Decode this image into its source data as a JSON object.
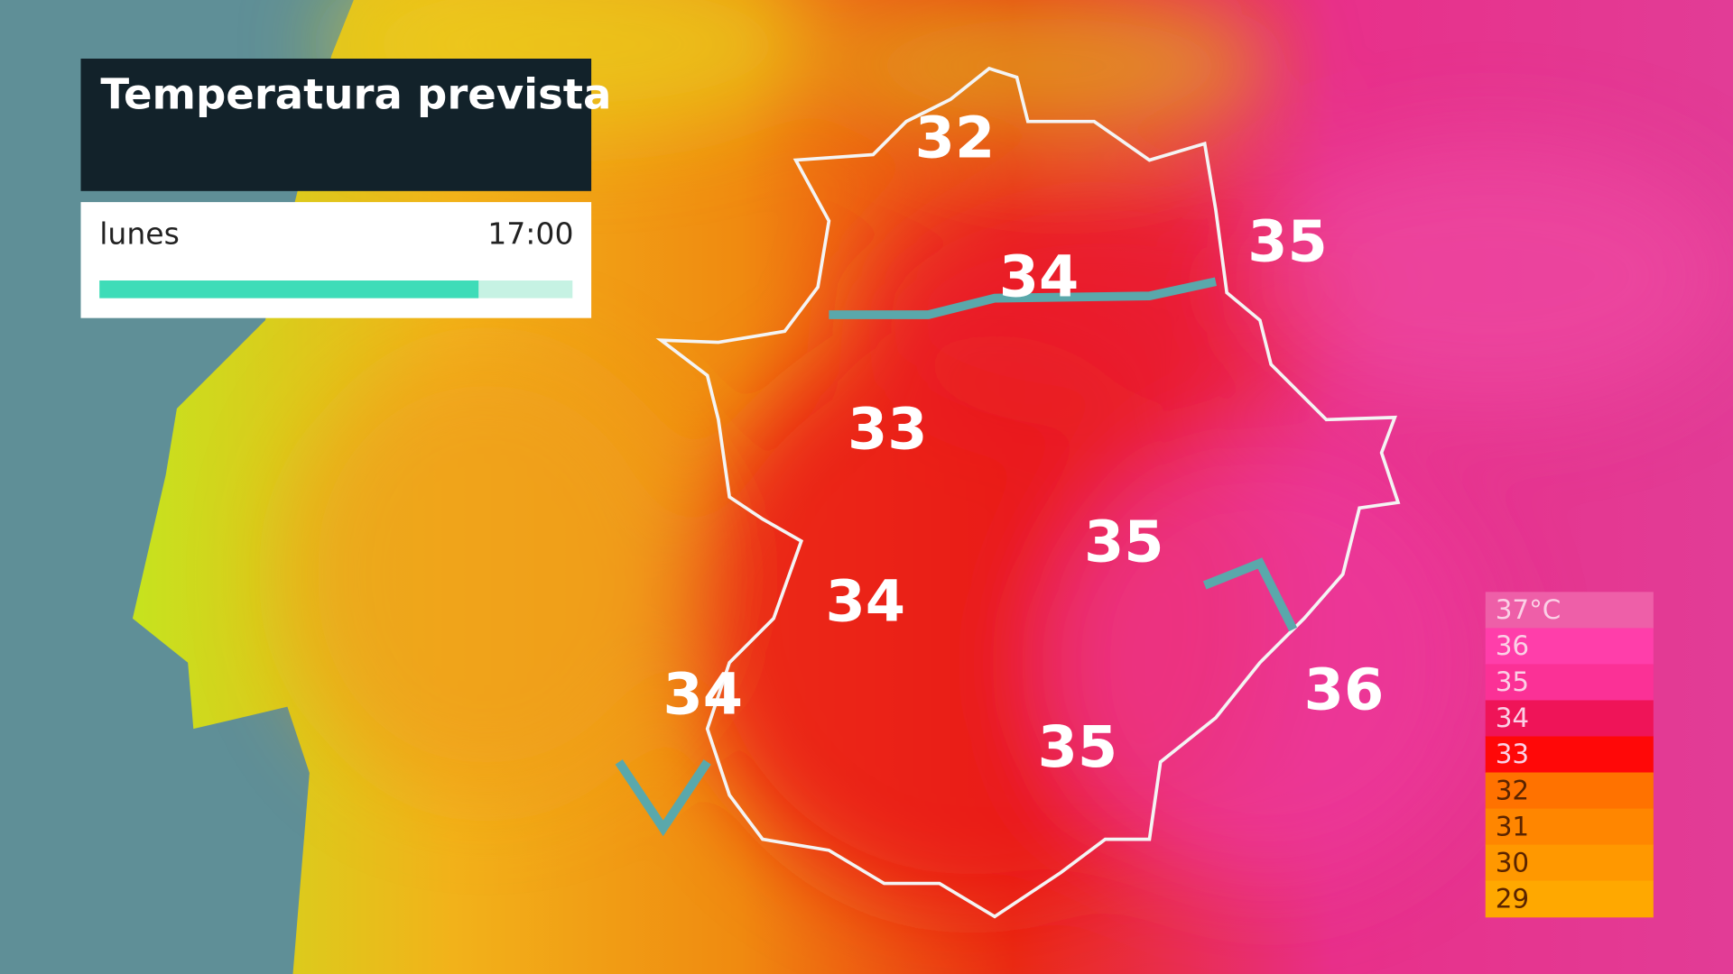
{
  "header": {
    "title": "Temperatura prevista",
    "day": "lunes",
    "time": "17:00"
  },
  "map_labels": [
    {
      "value": 32
    },
    {
      "value": 34
    },
    {
      "value": 35
    },
    {
      "value": 33
    },
    {
      "value": 35
    },
    {
      "value": 34
    },
    {
      "value": 34
    },
    {
      "value": 35
    },
    {
      "value": 36
    }
  ],
  "legend": [
    {
      "label": "37°C",
      "color": "#ee5fa8"
    },
    {
      "label": "36",
      "color": "#ff3eaa"
    },
    {
      "label": "35",
      "color": "#fb3196"
    },
    {
      "label": "34",
      "color": "#ef1458"
    },
    {
      "label": "33",
      "color": "#ff0808"
    },
    {
      "label": "32",
      "color": "#ff7200"
    },
    {
      "label": "31",
      "color": "#ff8600"
    },
    {
      "label": "30",
      "color": "#ff9800"
    },
    {
      "label": "29",
      "color": "#ffa800"
    }
  ]
}
